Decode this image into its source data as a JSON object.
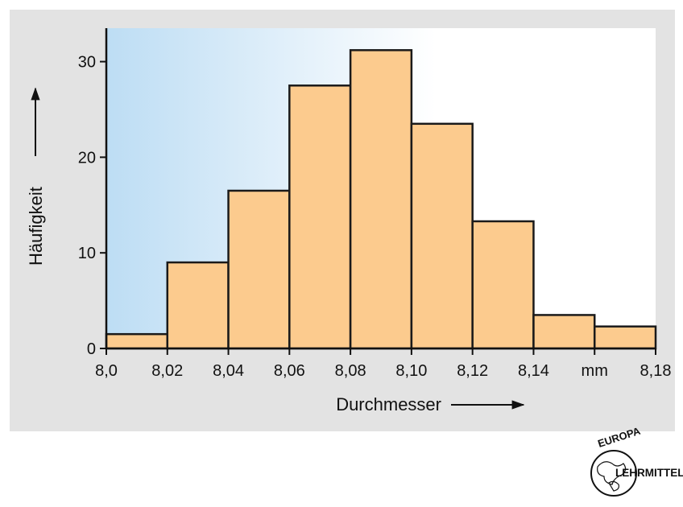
{
  "chart_data": {
    "type": "bar",
    "bin_edges": [
      8.0,
      8.02,
      8.04,
      8.06,
      8.08,
      8.1,
      8.12,
      8.14,
      8.16,
      8.18
    ],
    "values": [
      1.5,
      9,
      16.5,
      27.5,
      31.2,
      23.5,
      13.3,
      3.5,
      2.3
    ],
    "x_tick_labels": [
      "8,0",
      "8,02",
      "8,04",
      "8,06",
      "8,08",
      "8,10",
      "8,12",
      "8,14",
      "mm",
      "8,18"
    ],
    "y_ticks": [
      0,
      10,
      20,
      30
    ],
    "xlim": [
      8.0,
      8.18
    ],
    "ylim": [
      0,
      33.5
    ],
    "xlabel": "Durchmesser",
    "ylabel": "Häufigkeit",
    "grid": false,
    "colors": {
      "bar_fill": "#FCCB8E",
      "bar_stroke": "#1a1a1a",
      "panel_bg": "#E3E3E3",
      "plot_gradient_start": "#BDDDF4",
      "plot_gradient_end": "#FFFFFF"
    }
  },
  "logo": {
    "top_text": "EUROPA",
    "side_text": "LEHRMITTEL"
  }
}
